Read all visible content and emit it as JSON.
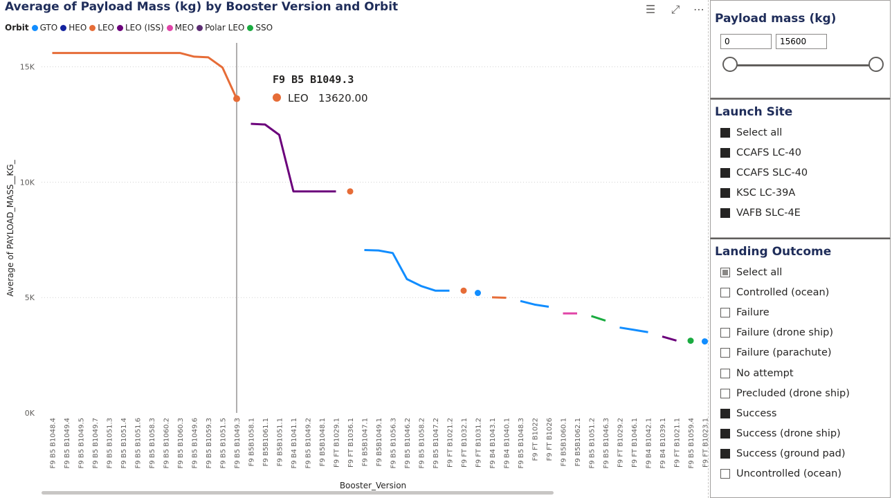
{
  "header": {
    "title": "Average of Payload Mass (kg) by Booster Version and Orbit"
  },
  "toolbar": {
    "filter_icon": "filter-icon",
    "focus_icon": "focus-mode-icon",
    "more_icon": "more-options-icon"
  },
  "legend": {
    "title": "Orbit",
    "items": [
      {
        "label": "GTO",
        "color": "#118dff"
      },
      {
        "label": "HEO",
        "color": "#12239e"
      },
      {
        "label": "LEO",
        "color": "#e66c37"
      },
      {
        "label": "LEO (ISS)",
        "color": "#6b007b"
      },
      {
        "label": "MEO",
        "color": "#e044a7"
      },
      {
        "label": "Polar LEO",
        "color": "#5c2d73"
      },
      {
        "label": "SSO",
        "color": "#1aab40"
      }
    ]
  },
  "tooltip": {
    "title": "F9 B5 B1049.3",
    "series": "LEO",
    "value": "13620.00",
    "color": "#e66c37"
  },
  "chart_data": {
    "type": "line",
    "title": "Average of Payload Mass (kg) by Booster Version and Orbit",
    "xlabel": "Booster_Version",
    "ylabel": "Average of PAYLOAD_MASS__KG_",
    "ylim": [
      0,
      16000
    ],
    "yticks": [
      0,
      5000,
      10000,
      15000
    ],
    "ytick_labels": [
      "0K",
      "5K",
      "10K",
      "15K"
    ],
    "grid": true,
    "categories": [
      "F9 B5 B1048.4",
      "F9 B5 B1049.4",
      "F9 B5 B1049.5",
      "F9 B5 B1049.7",
      "F9 B5 B1051.3",
      "F9 B5 B1051.4",
      "F9 B5 B1051.6",
      "F9 B5 B1058.3",
      "F9 B5 B1060.2",
      "F9 B5 B1060.3",
      "F9 B5 B1049.6",
      "F9 B5 B1059.3",
      "F9 B5 B1051.5",
      "F9 B5 B1049.3",
      "F9 B5B1058.1",
      "F9 B5B1061.1",
      "F9 B5B1051.1",
      "F9 B4 B1041.1",
      "F9 B5 B1049.2",
      "F9 B5B1048.1",
      "F9 FT B1029.1",
      "F9 FT B1036.1",
      "F9 B5B1047.1",
      "F9 B5B1049.1",
      "F9 B5 B1056.3",
      "F9 B5 B1046.2",
      "F9 B5 B1058.2",
      "F9 B5 B1047.2",
      "F9 FT B1021.2",
      "F9 FT B1032.1",
      "F9 FT B1031.2",
      "F9 B4 B1043.1",
      "F9 B4 B1040.1",
      "F9 B5 B1048.3",
      "F9 FT B1022",
      "F9 FT B1026",
      "F9 B5B1060.1",
      "F9 B5B1062.1",
      "F9 B5 B1051.2",
      "F9 B5 B1046.3",
      "F9 FT B1029.2",
      "F9 FT B1046.1",
      "F9 B4 B1042.1",
      "F9 B4 B1039.1",
      "F9 FT B1021.1",
      "F9 B5 B1059.4",
      "F9 FT B1023.1"
    ],
    "series": [
      {
        "name": "LEO",
        "color": "#e66c37",
        "values": [
          15600,
          15600,
          15600,
          15600,
          15600,
          15600,
          15600,
          15600,
          15600,
          15600,
          15440,
          15410,
          14970,
          13620,
          null,
          null,
          null,
          null,
          null,
          null,
          null,
          9600,
          null,
          null,
          null,
          null,
          null,
          null,
          null,
          5300,
          null,
          5010,
          4990,
          null,
          null,
          null,
          null,
          null,
          null,
          null,
          null,
          null,
          null,
          null,
          null,
          null,
          null
        ]
      },
      {
        "name": "LEO (ISS)",
        "color": "#6b007b",
        "values": [
          null,
          null,
          null,
          null,
          null,
          null,
          null,
          null,
          null,
          null,
          null,
          null,
          null,
          null,
          12530,
          12500,
          12050,
          9600,
          9600,
          9600,
          9600,
          null,
          null,
          null,
          null,
          null,
          null,
          null,
          null,
          null,
          null,
          null,
          null,
          null,
          null,
          null,
          null,
          null,
          null,
          null,
          null,
          null,
          null,
          3310,
          3136,
          null,
          null
        ]
      },
      {
        "name": "GTO",
        "color": "#118dff",
        "values": [
          null,
          null,
          null,
          null,
          null,
          null,
          null,
          null,
          null,
          null,
          null,
          null,
          null,
          null,
          null,
          null,
          null,
          null,
          null,
          null,
          null,
          null,
          7060,
          7040,
          6930,
          5800,
          5500,
          5300,
          5300,
          null,
          5200,
          null,
          null,
          4850,
          4696,
          4600,
          null,
          null,
          null,
          null,
          3700,
          3600,
          3500,
          null,
          null,
          null,
          3100
        ]
      },
      {
        "name": "MEO",
        "color": "#e044a7",
        "values": [
          null,
          null,
          null,
          null,
          null,
          null,
          null,
          null,
          null,
          null,
          null,
          null,
          null,
          null,
          null,
          null,
          null,
          null,
          null,
          null,
          null,
          null,
          null,
          null,
          null,
          null,
          null,
          null,
          null,
          null,
          null,
          null,
          null,
          null,
          null,
          null,
          4311,
          4311,
          null,
          null,
          null,
          null,
          null,
          null,
          null,
          null,
          null
        ]
      },
      {
        "name": "SSO",
        "color": "#1aab40",
        "values": [
          null,
          null,
          null,
          null,
          null,
          null,
          null,
          null,
          null,
          null,
          null,
          null,
          null,
          null,
          null,
          null,
          null,
          null,
          null,
          null,
          null,
          null,
          null,
          null,
          null,
          null,
          null,
          null,
          null,
          null,
          null,
          null,
          null,
          null,
          null,
          null,
          null,
          null,
          4200,
          4000,
          null,
          null,
          null,
          null,
          null,
          3130,
          null
        ]
      }
    ]
  },
  "slicers": {
    "payload": {
      "title": "Payload mass (kg)",
      "min_value": "0",
      "max_value": "15600"
    },
    "launch_site": {
      "title": "Launch Site",
      "items": [
        {
          "label": "Select all",
          "state": "on"
        },
        {
          "label": "CCAFS LC-40",
          "state": "on"
        },
        {
          "label": "CCAFS SLC-40",
          "state": "on"
        },
        {
          "label": "KSC LC-39A",
          "state": "on"
        },
        {
          "label": "VAFB SLC-4E",
          "state": "on"
        }
      ]
    },
    "landing_outcome": {
      "title": "Landing Outcome",
      "items": [
        {
          "label": "Select all",
          "state": "partial"
        },
        {
          "label": "Controlled (ocean)",
          "state": "off"
        },
        {
          "label": "Failure",
          "state": "off"
        },
        {
          "label": "Failure (drone ship)",
          "state": "off"
        },
        {
          "label": "Failure (parachute)",
          "state": "off"
        },
        {
          "label": "No attempt",
          "state": "off"
        },
        {
          "label": "Precluded (drone ship)",
          "state": "off"
        },
        {
          "label": "Success",
          "state": "on"
        },
        {
          "label": "Success (drone ship)",
          "state": "on"
        },
        {
          "label": "Success (ground pad)",
          "state": "on"
        },
        {
          "label": "Uncontrolled (ocean)",
          "state": "off"
        }
      ]
    }
  }
}
